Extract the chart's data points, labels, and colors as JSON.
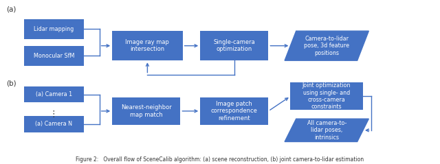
{
  "fig_width": 6.4,
  "fig_height": 2.39,
  "dpi": 100,
  "bg_color": "#ffffff",
  "box_color": "#4472C4",
  "text_color": "#ffffff",
  "label_color": "#333333",
  "arrow_color": "#4472C4",
  "a_lidar": [
    0.055,
    0.735,
    0.135,
    0.135
  ],
  "a_sfm": [
    0.055,
    0.555,
    0.135,
    0.135
  ],
  "a_raymap": [
    0.255,
    0.59,
    0.16,
    0.2
  ],
  "a_single": [
    0.455,
    0.59,
    0.155,
    0.2
  ],
  "a_camlidar": [
    0.66,
    0.59,
    0.165,
    0.2
  ],
  "b_cam1": [
    0.055,
    0.305,
    0.135,
    0.11
  ],
  "b_camN": [
    0.055,
    0.105,
    0.135,
    0.11
  ],
  "b_nn": [
    0.255,
    0.155,
    0.155,
    0.185
  ],
  "b_patch": [
    0.455,
    0.155,
    0.155,
    0.185
  ],
  "b_joint": [
    0.66,
    0.255,
    0.165,
    0.185
  ],
  "b_allcam": [
    0.66,
    0.04,
    0.165,
    0.155
  ],
  "caption": "Figure 2:   Overall flow of SceneCalib algorithm: (a) scene reconstruction, (b) joint camera-to-lidar estimation",
  "caption_fontsize": 5.5
}
